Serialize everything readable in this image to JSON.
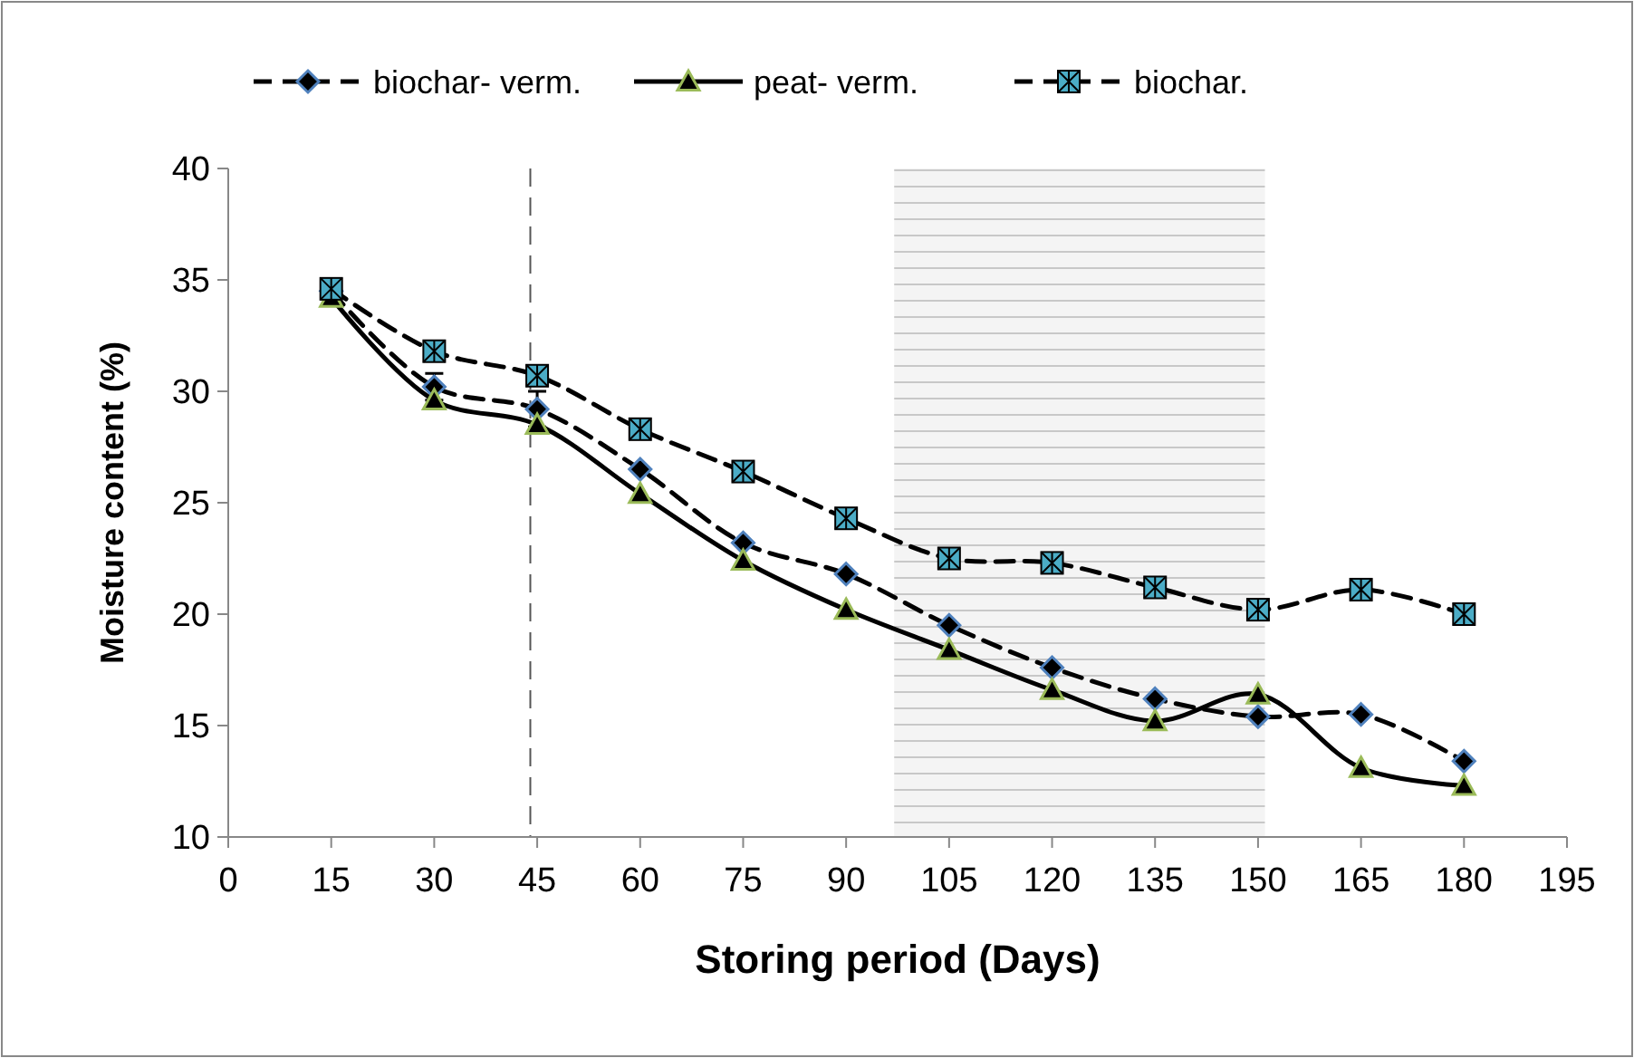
{
  "chart_data": {
    "type": "line",
    "xlabel": "Storing period (Days)",
    "ylabel": "Moisture content (%)",
    "x": [
      15,
      30,
      45,
      60,
      75,
      90,
      105,
      120,
      135,
      150,
      165,
      180
    ],
    "xlim": [
      0,
      195
    ],
    "xticks": [
      0,
      15,
      30,
      45,
      60,
      75,
      90,
      105,
      120,
      135,
      150,
      165,
      180,
      195
    ],
    "ylim": [
      10,
      40
    ],
    "yticks": [
      10,
      15,
      20,
      25,
      30,
      35,
      40
    ],
    "legend": "top",
    "grid": false,
    "series": [
      {
        "name": "biochar- verm.",
        "color": "#4f81bd",
        "marker": "diamond",
        "line_style": "dashed",
        "values": [
          34.5,
          30.2,
          29.2,
          26.5,
          23.2,
          21.8,
          19.5,
          17.6,
          16.2,
          15.4,
          15.5,
          13.4
        ],
        "errors": [
          null,
          0.6,
          0.8,
          null,
          null,
          null,
          null,
          null,
          null,
          null,
          null,
          null
        ]
      },
      {
        "name": "peat- verm.",
        "color": "#9bbb59",
        "marker": "triangle",
        "line_style": "solid",
        "values": [
          34.2,
          29.6,
          28.5,
          25.4,
          22.4,
          20.2,
          18.4,
          16.6,
          15.2,
          16.4,
          13.1,
          12.3
        ]
      },
      {
        "name": "biochar.",
        "color": "#4bacc6",
        "marker": "square",
        "line_style": "dashed",
        "values": [
          34.6,
          31.8,
          30.7,
          28.3,
          26.4,
          24.3,
          22.5,
          22.3,
          21.2,
          20.2,
          21.1,
          20.0
        ]
      }
    ],
    "ref_lines": [
      {
        "axis": "x",
        "value": 44,
        "color": "#555555",
        "line_style": "dashed"
      }
    ],
    "bands": [
      {
        "axis": "x",
        "from": 97,
        "to": 151,
        "color": "#c8c8c8"
      }
    ]
  }
}
